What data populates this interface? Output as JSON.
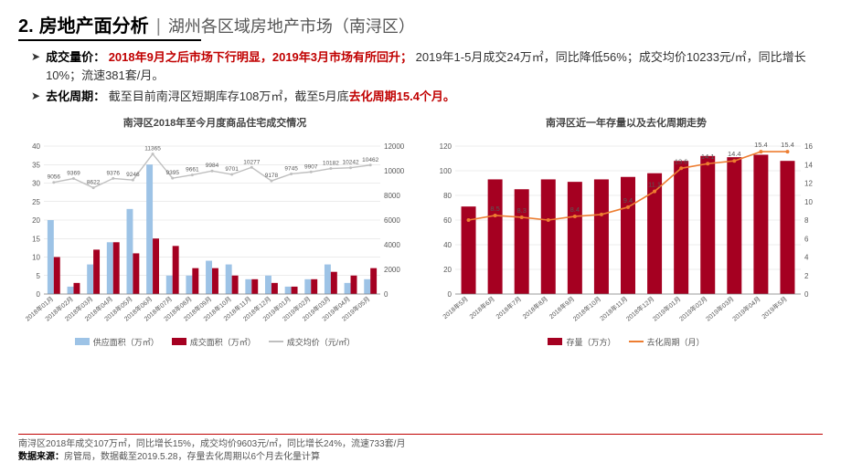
{
  "header": {
    "number": "2.",
    "title": "房地产面分析",
    "subtitle": "湖州各区域房地产市场（南浔区）"
  },
  "bullets": [
    {
      "label": "成交量价：",
      "red": "2018年9月之后市场下行明显，2019年3月市场有所回升；",
      "rest": "2019年1-5月成交24万㎡，同比降低56%；成交均价10233元/㎡，同比增长10%；流速381套/月。"
    },
    {
      "label": "去化周期：",
      "red_after": "去化周期15.4个月。",
      "prefix": "截至目前南浔区短期库存108万㎡，截至5月底"
    }
  ],
  "chart_left": {
    "title": "南浔区2018年至今月度商品住宅成交情况",
    "type": "combo-bar-line",
    "x_labels": [
      "2018年01月",
      "2018年02月",
      "2018年03月",
      "2018年04月",
      "2018年05月",
      "2018年06月",
      "2018年07月",
      "2018年08月",
      "2018年09月",
      "2018年10月",
      "2018年11月",
      "2018年12月",
      "2019年01月",
      "2019年02月",
      "2019年03月",
      "2019年04月",
      "2019年05月"
    ],
    "left_axis": {
      "min": 0,
      "max": 40,
      "step": 5
    },
    "right_axis": {
      "min": 0,
      "max": 12000,
      "step": 2000
    },
    "supply": [
      20,
      2,
      8,
      14,
      23,
      35,
      5,
      5,
      9,
      8,
      4,
      5,
      2,
      4,
      8,
      3,
      4
    ],
    "deal": [
      10,
      3,
      12,
      14,
      11,
      15,
      13,
      7,
      7,
      5,
      4,
      3,
      2,
      4,
      6,
      5,
      7
    ],
    "price": [
      9056,
      9369,
      8622,
      9376,
      9246,
      11365,
      9395,
      9661,
      9984,
      9701,
      10277,
      9178,
      9745,
      9907,
      10182,
      10242,
      10462
    ],
    "colors": {
      "supply": "#9dc3e6",
      "deal": "#a50021",
      "price": "#bfbfbf",
      "grid": "#d9d9d9",
      "axis": "#808080",
      "label": "#595959"
    },
    "legend": [
      "供应面积（万㎡）",
      "成交面积（万㎡）",
      "成交均价（元/㎡）"
    ]
  },
  "chart_right": {
    "title": "南浔区近一年存量以及去化周期走势",
    "type": "combo-bar-line",
    "x_labels": [
      "2018年5月",
      "2018年6月",
      "2018年7月",
      "2018年8月",
      "2018年9月",
      "2018年10月",
      "2018年11月",
      "2018年12月",
      "2019年01月",
      "2019年02月",
      "2019年03月",
      "2019年04月",
      "2019年5月"
    ],
    "left_axis": {
      "min": 0,
      "max": 120,
      "step": 20
    },
    "right_axis": {
      "min": 0,
      "max": 16,
      "step": 2
    },
    "stock": [
      71,
      93,
      85,
      93,
      91,
      93,
      95,
      98,
      108,
      112,
      111,
      113,
      108
    ],
    "period": [
      8.0,
      8.5,
      8.3,
      8.0,
      8.4,
      8.6,
      9.4,
      11.1,
      13.6,
      14.1,
      14.4,
      15.4,
      15.4
    ],
    "period_labels": [
      "",
      "8.5",
      "8.3",
      "",
      "8.4",
      "",
      "9.4",
      "11.1",
      "13.6",
      "14.1",
      "14.4",
      "15.4",
      "15.4"
    ],
    "colors": {
      "stock": "#a50021",
      "period": "#ed7d31",
      "grid": "#d9d9d9",
      "axis": "#808080",
      "label": "#595959"
    },
    "legend": [
      "存量（万方）",
      "去化周期（月）"
    ]
  },
  "footnotes": {
    "line1": "南浔区2018年成交107万㎡，同比增长15%，成交均价9603元/㎡，同比增长24%，流速733套/月",
    "src_label": "数据来源：",
    "src_text": "房管局，数据截至2019.5.28，存量去化周期以6个月去化量计算"
  }
}
